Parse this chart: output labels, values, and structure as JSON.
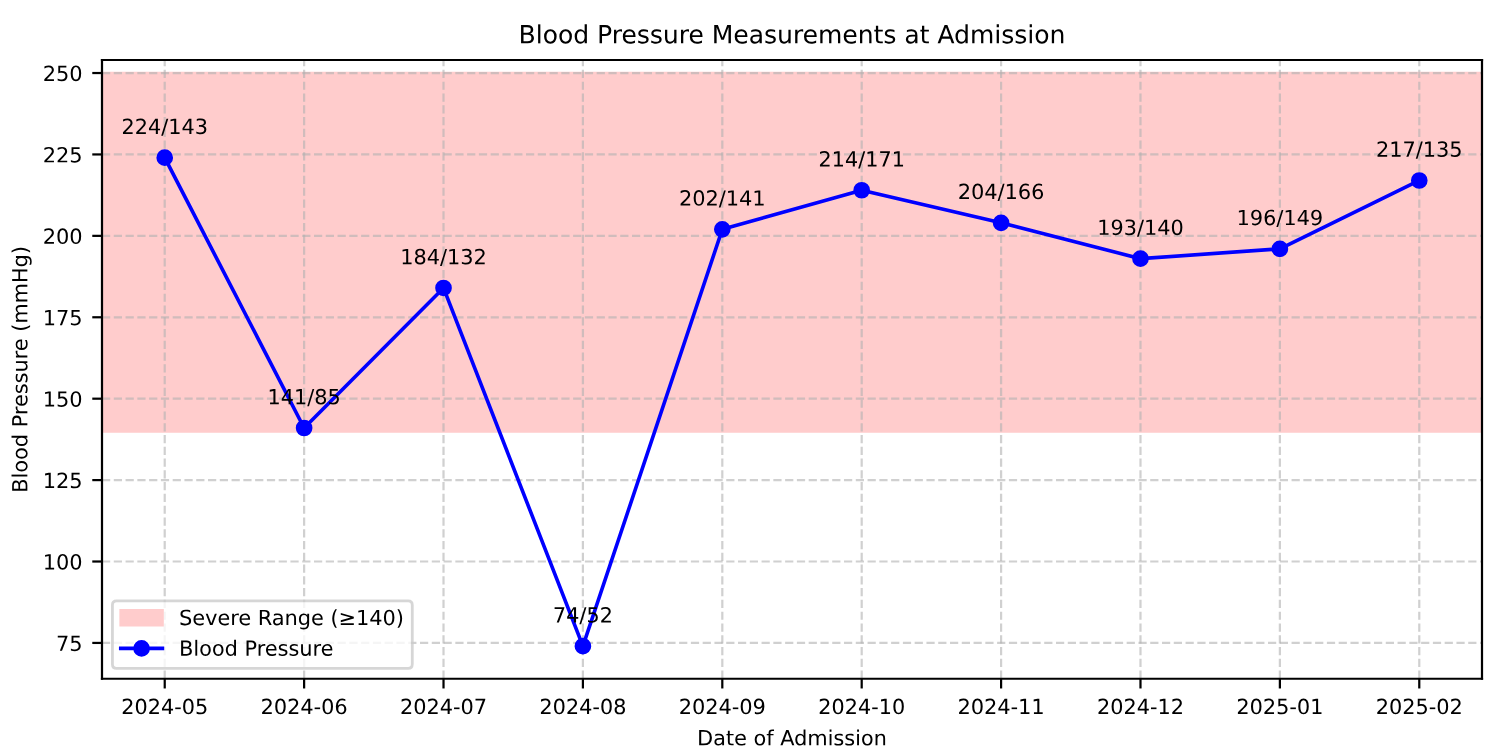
{
  "chart_data": {
    "type": "line",
    "title": "Blood Pressure Measurements at Admission",
    "xlabel": "Date of Admission",
    "ylabel": "Blood Pressure (mmHg)",
    "categories": [
      "2024-05",
      "2024-06",
      "2024-07",
      "2024-08",
      "2024-09",
      "2024-10",
      "2024-11",
      "2024-12",
      "2025-01",
      "2025-02"
    ],
    "series": [
      {
        "name": "Blood Pressure",
        "color": "#0000ff",
        "values": [
          224,
          141,
          184,
          74,
          202,
          214,
          204,
          193,
          196,
          217
        ],
        "value_labels": [
          "224/143",
          "141/85",
          "184/132",
          "74/52",
          "202/141",
          "214/171",
          "204/166",
          "193/140",
          "196/149",
          "217/135"
        ]
      }
    ],
    "bands": [
      {
        "axis": "y",
        "from": 140,
        "to": 250,
        "label": "Severe Range (≥140)",
        "color": "#ffcccc"
      }
    ],
    "ylim": [
      64,
      254
    ],
    "yticks": [
      75,
      100,
      125,
      150,
      175,
      200,
      225,
      250
    ],
    "grid": true,
    "legend": "bottom left",
    "marker": "circle",
    "line_style": "solid"
  }
}
